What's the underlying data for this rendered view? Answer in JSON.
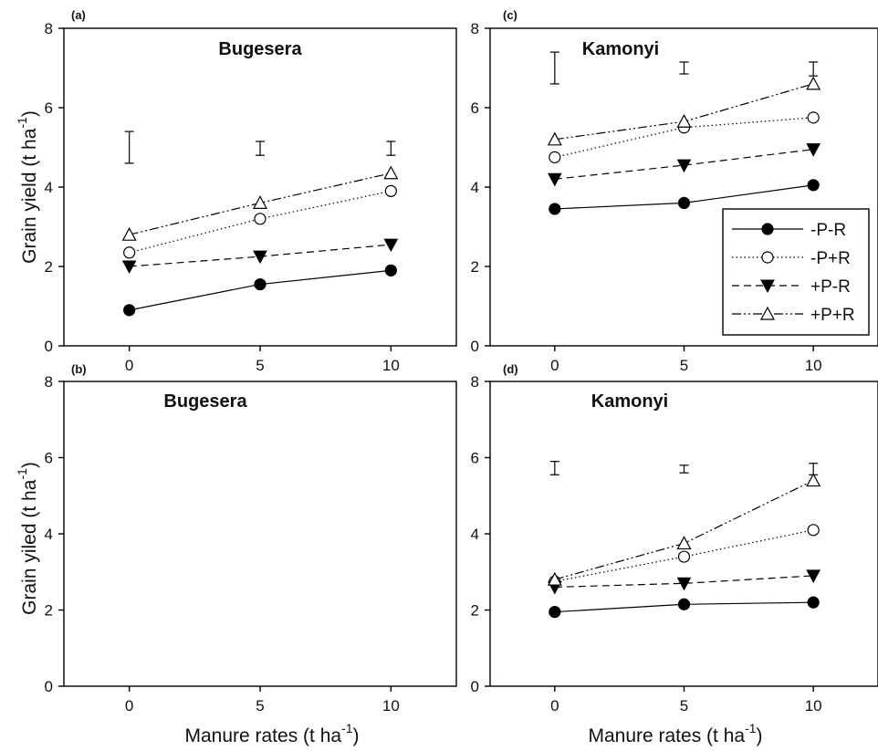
{
  "figure": {
    "ylabel_top": {
      "main": "Grain yield (t ha",
      "sup": "-1",
      "close": ")"
    },
    "ylabel_bottom": {
      "main": "Grain yiled (t ha",
      "sup": "-1",
      "close": ")"
    },
    "xlabel": {
      "main": "Manure rates (t ha",
      "sup": "-1",
      "close": ")"
    }
  },
  "legend": [
    {
      "label": "-P-R",
      "series": "-P-R"
    },
    {
      "label": "-P+R",
      "series": "-P+R"
    },
    {
      "label": "+P-R",
      "series": "+P-R"
    },
    {
      "label": "+P+R",
      "series": "+P+R"
    }
  ],
  "series_styles": {
    "-P-R": {
      "marker": "filled-circle",
      "line": "solid"
    },
    "-P+R": {
      "marker": "open-circle",
      "line": "dotted"
    },
    "+P-R": {
      "marker": "filled-triangle-down",
      "line": "dashed"
    },
    "+P+R": {
      "marker": "open-triangle-up",
      "line": "dash-dot-dot"
    }
  },
  "chart_data": [
    {
      "panel": "(a)",
      "title": "Bugesera",
      "type": "line",
      "x": [
        0,
        5,
        10
      ],
      "xticks": [
        "0",
        "5",
        "10"
      ],
      "yticks": [
        "0",
        "2",
        "4",
        "6",
        "8"
      ],
      "ylim": [
        0,
        8
      ],
      "series": [
        {
          "name": "-P-R",
          "values": [
            0.9,
            1.55,
            1.9
          ]
        },
        {
          "name": "-P+R",
          "values": [
            2.35,
            3.2,
            3.9
          ]
        },
        {
          "name": "+P-R",
          "values": [
            2.0,
            2.25,
            2.55
          ]
        },
        {
          "name": "+P+R",
          "values": [
            2.8,
            3.6,
            4.35
          ]
        }
      ],
      "error_bars": [
        {
          "x": 0,
          "low": 4.6,
          "high": 5.4
        },
        {
          "x": 5,
          "low": 4.8,
          "high": 5.15
        },
        {
          "x": 10,
          "low": 4.8,
          "high": 5.15
        }
      ]
    },
    {
      "panel": "(c)",
      "title": "Kamonyi",
      "type": "line",
      "x": [
        0,
        5,
        10
      ],
      "xticks": [
        "0",
        "5",
        "10"
      ],
      "yticks": [
        "0",
        "2",
        "4",
        "6",
        "8"
      ],
      "ylim": [
        0,
        8
      ],
      "series": [
        {
          "name": "-P-R",
          "values": [
            3.45,
            3.6,
            4.05
          ]
        },
        {
          "name": "-P+R",
          "values": [
            4.75,
            5.5,
            5.75
          ]
        },
        {
          "name": "+P-R",
          "values": [
            4.2,
            4.55,
            4.95
          ]
        },
        {
          "name": "+P+R",
          "values": [
            5.2,
            5.65,
            6.6
          ]
        }
      ],
      "error_bars": [
        {
          "x": 0,
          "low": 6.6,
          "high": 7.4
        },
        {
          "x": 5,
          "low": 6.85,
          "high": 7.15
        },
        {
          "x": 10,
          "low": 6.8,
          "high": 7.15
        }
      ]
    },
    {
      "panel": "(b)",
      "title": "Bugesera",
      "type": "line",
      "x": [
        0,
        5,
        10
      ],
      "xticks": [
        "0",
        "5",
        "10"
      ],
      "yticks": [
        "0",
        "2",
        "4",
        "6",
        "8"
      ],
      "ylim": [
        0,
        8
      ],
      "series": [],
      "error_bars": []
    },
    {
      "panel": "(d)",
      "title": "Kamonyi",
      "type": "line",
      "x": [
        0,
        5,
        10
      ],
      "xticks": [
        "0",
        "5",
        "10"
      ],
      "yticks": [
        "0",
        "2",
        "4",
        "6",
        "8"
      ],
      "ylim": [
        0,
        8
      ],
      "series": [
        {
          "name": "-P-R",
          "values": [
            1.95,
            2.15,
            2.2
          ]
        },
        {
          "name": "-P+R",
          "values": [
            2.75,
            3.4,
            4.1
          ]
        },
        {
          "name": "+P-R",
          "values": [
            2.6,
            2.7,
            2.9
          ]
        },
        {
          "name": "+P+R",
          "values": [
            2.8,
            3.75,
            5.4
          ]
        }
      ],
      "error_bars": [
        {
          "x": 0,
          "low": 5.55,
          "high": 5.9
        },
        {
          "x": 5,
          "low": 5.6,
          "high": 5.8
        },
        {
          "x": 10,
          "low": 5.55,
          "high": 5.85
        }
      ]
    }
  ]
}
